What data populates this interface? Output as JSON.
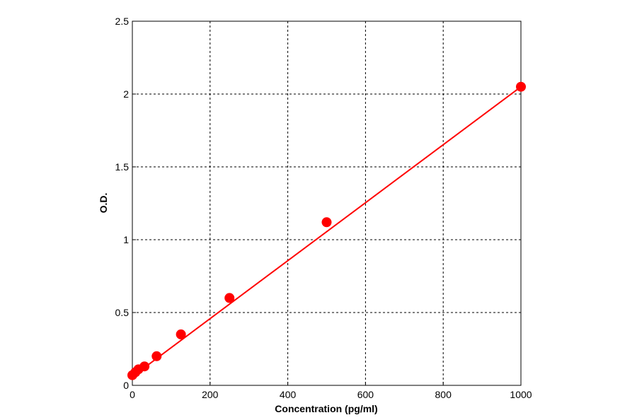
{
  "chart_data": {
    "type": "scatter",
    "title": "",
    "xlabel": "Concentration (pg/ml)",
    "ylabel": "O.D.",
    "xlim": [
      0,
      1000
    ],
    "ylim": [
      0,
      2.5
    ],
    "xticks": [
      "0",
      "200",
      "400",
      "600",
      "800",
      "1000"
    ],
    "yticks": [
      "0",
      "0.5",
      "1",
      "1.5",
      "2",
      "2.5"
    ],
    "grid": true,
    "legend": "none",
    "series": [
      {
        "color": "#ff0000",
        "marker": "circle",
        "points": [
          {
            "x": 0,
            "y": 0.07
          },
          {
            "x": 7.8,
            "y": 0.09
          },
          {
            "x": 15.6,
            "y": 0.11
          },
          {
            "x": 31.2,
            "y": 0.13
          },
          {
            "x": 62.5,
            "y": 0.2
          },
          {
            "x": 125,
            "y": 0.35
          },
          {
            "x": 250,
            "y": 0.6
          },
          {
            "x": 500,
            "y": 1.12
          },
          {
            "x": 1000,
            "y": 2.05
          }
        ]
      }
    ],
    "fit_line": {
      "color": "#ff0000",
      "x": [
        0,
        1000
      ],
      "y": [
        0.06,
        2.05
      ]
    }
  }
}
